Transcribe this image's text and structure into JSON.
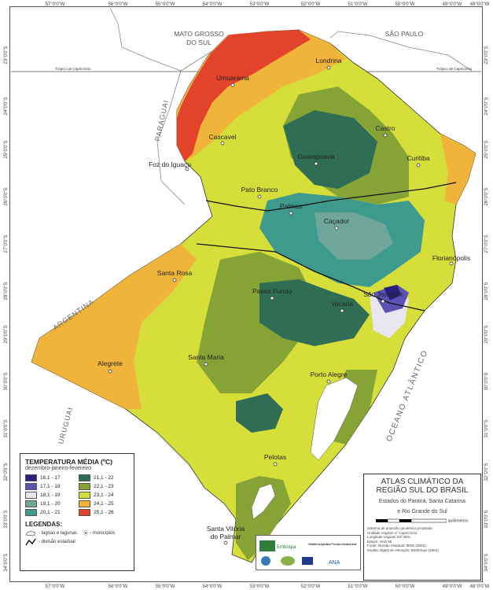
{
  "map": {
    "lon_ticks": [
      "57°0'0\"W",
      "56°0'0\"W",
      "55°0'0\"W",
      "54°0'0\"W",
      "53°0'0\"W",
      "52°0'0\"W",
      "51°0'0\"W",
      "50°0'0\"W",
      "49°0'0\"W",
      "48°0'0\"W"
    ],
    "lat_ticks": [
      "23°0'0\"S",
      "24°0'0\"S",
      "25°0'0\"S",
      "26°0'0\"S",
      "27°0'0\"S",
      "28°0'0\"S",
      "29°0'0\"S",
      "30°0'0\"S",
      "31°0'0\"S",
      "32°0'0\"S",
      "33°0'0\"S",
      "34°0'0\"S"
    ],
    "tropic_label": "Trópico de Capricórnio",
    "neighbors": {
      "mato_grosso": [
        "MATO GROSSO",
        "DO SUL"
      ],
      "sao_paulo": "SÃO PAULO",
      "paraguai": "PARAGUAI",
      "argentina": "ARGENTINA",
      "uruguai": "URUGUAI",
      "ocean": "OCEANO ATLÂNTICO"
    },
    "cities": [
      "Londrina",
      "Umuarama",
      "Cascavel",
      "Castro",
      "Foz do Iguaçu",
      "Guarapuava",
      "Curitiba",
      "Pato Branco",
      "Palmas",
      "Caçador",
      "Florianópolis",
      "Santa Rosa",
      "Passo Fundo",
      "São Joaquim",
      "Vacaria",
      "Alegrete",
      "Santa Maria",
      "Porto Alegre",
      "Pelotas",
      "Santa Vitória do Palmar"
    ]
  },
  "legend": {
    "title": "TEMPERATURA MÉDIA (ºC)",
    "subtitle": "dezembro-janeiro-fevereiro",
    "classes": [
      {
        "label": "16,1 - 17",
        "color": "#2a1f7a"
      },
      {
        "label": "21,1 - 22",
        "color": "#2f6d54"
      },
      {
        "label": "17,1 - 18",
        "color": "#5b52b4"
      },
      {
        "label": "22,1 - 23",
        "color": "#86a335"
      },
      {
        "label": "18,1 - 19",
        "color": "#e8e6ee"
      },
      {
        "label": "23,1 - 24",
        "color": "#d6df3a"
      },
      {
        "label": "19,1 - 20",
        "color": "#6ea79a"
      },
      {
        "label": "24,1 - 25",
        "color": "#f0b43a"
      },
      {
        "label": "20,1 - 21",
        "color": "#3f9a8e"
      },
      {
        "label": "25,1 - 26",
        "color": "#e2432a"
      }
    ],
    "legendas_title": "LEGENDAS:",
    "lakes_label": "- lagoas e lagunas",
    "municipios_label": "- municípios",
    "division_label": "- divisão estadual"
  },
  "titlebox": {
    "line1": "ATLAS CLIMÁTICO DA",
    "line2": "REGIÃO SUL DO BRASIL",
    "line3": "Estados do Paraná, Santa Catarina",
    "line4": "e Rio Grande do Sul",
    "scale_unit": "quilômetros",
    "notes": [
      "Sistema de projeção geodésica projetada",
      "Unidade original: 1º Capricórnio",
      "Longitude original: 54º WGr",
      "Datum: SAD 69",
      "Fonte: Divisão estadual: IBGE (2001)",
      "Modelo digital de elevação: INDE/Inpe (2004)"
    ]
  },
  "logos": {
    "embrapa": "Embrapa",
    "ministerio": "Ministério da Agricultura, Pecuária e Abastecimento",
    "ana": "ANA"
  }
}
